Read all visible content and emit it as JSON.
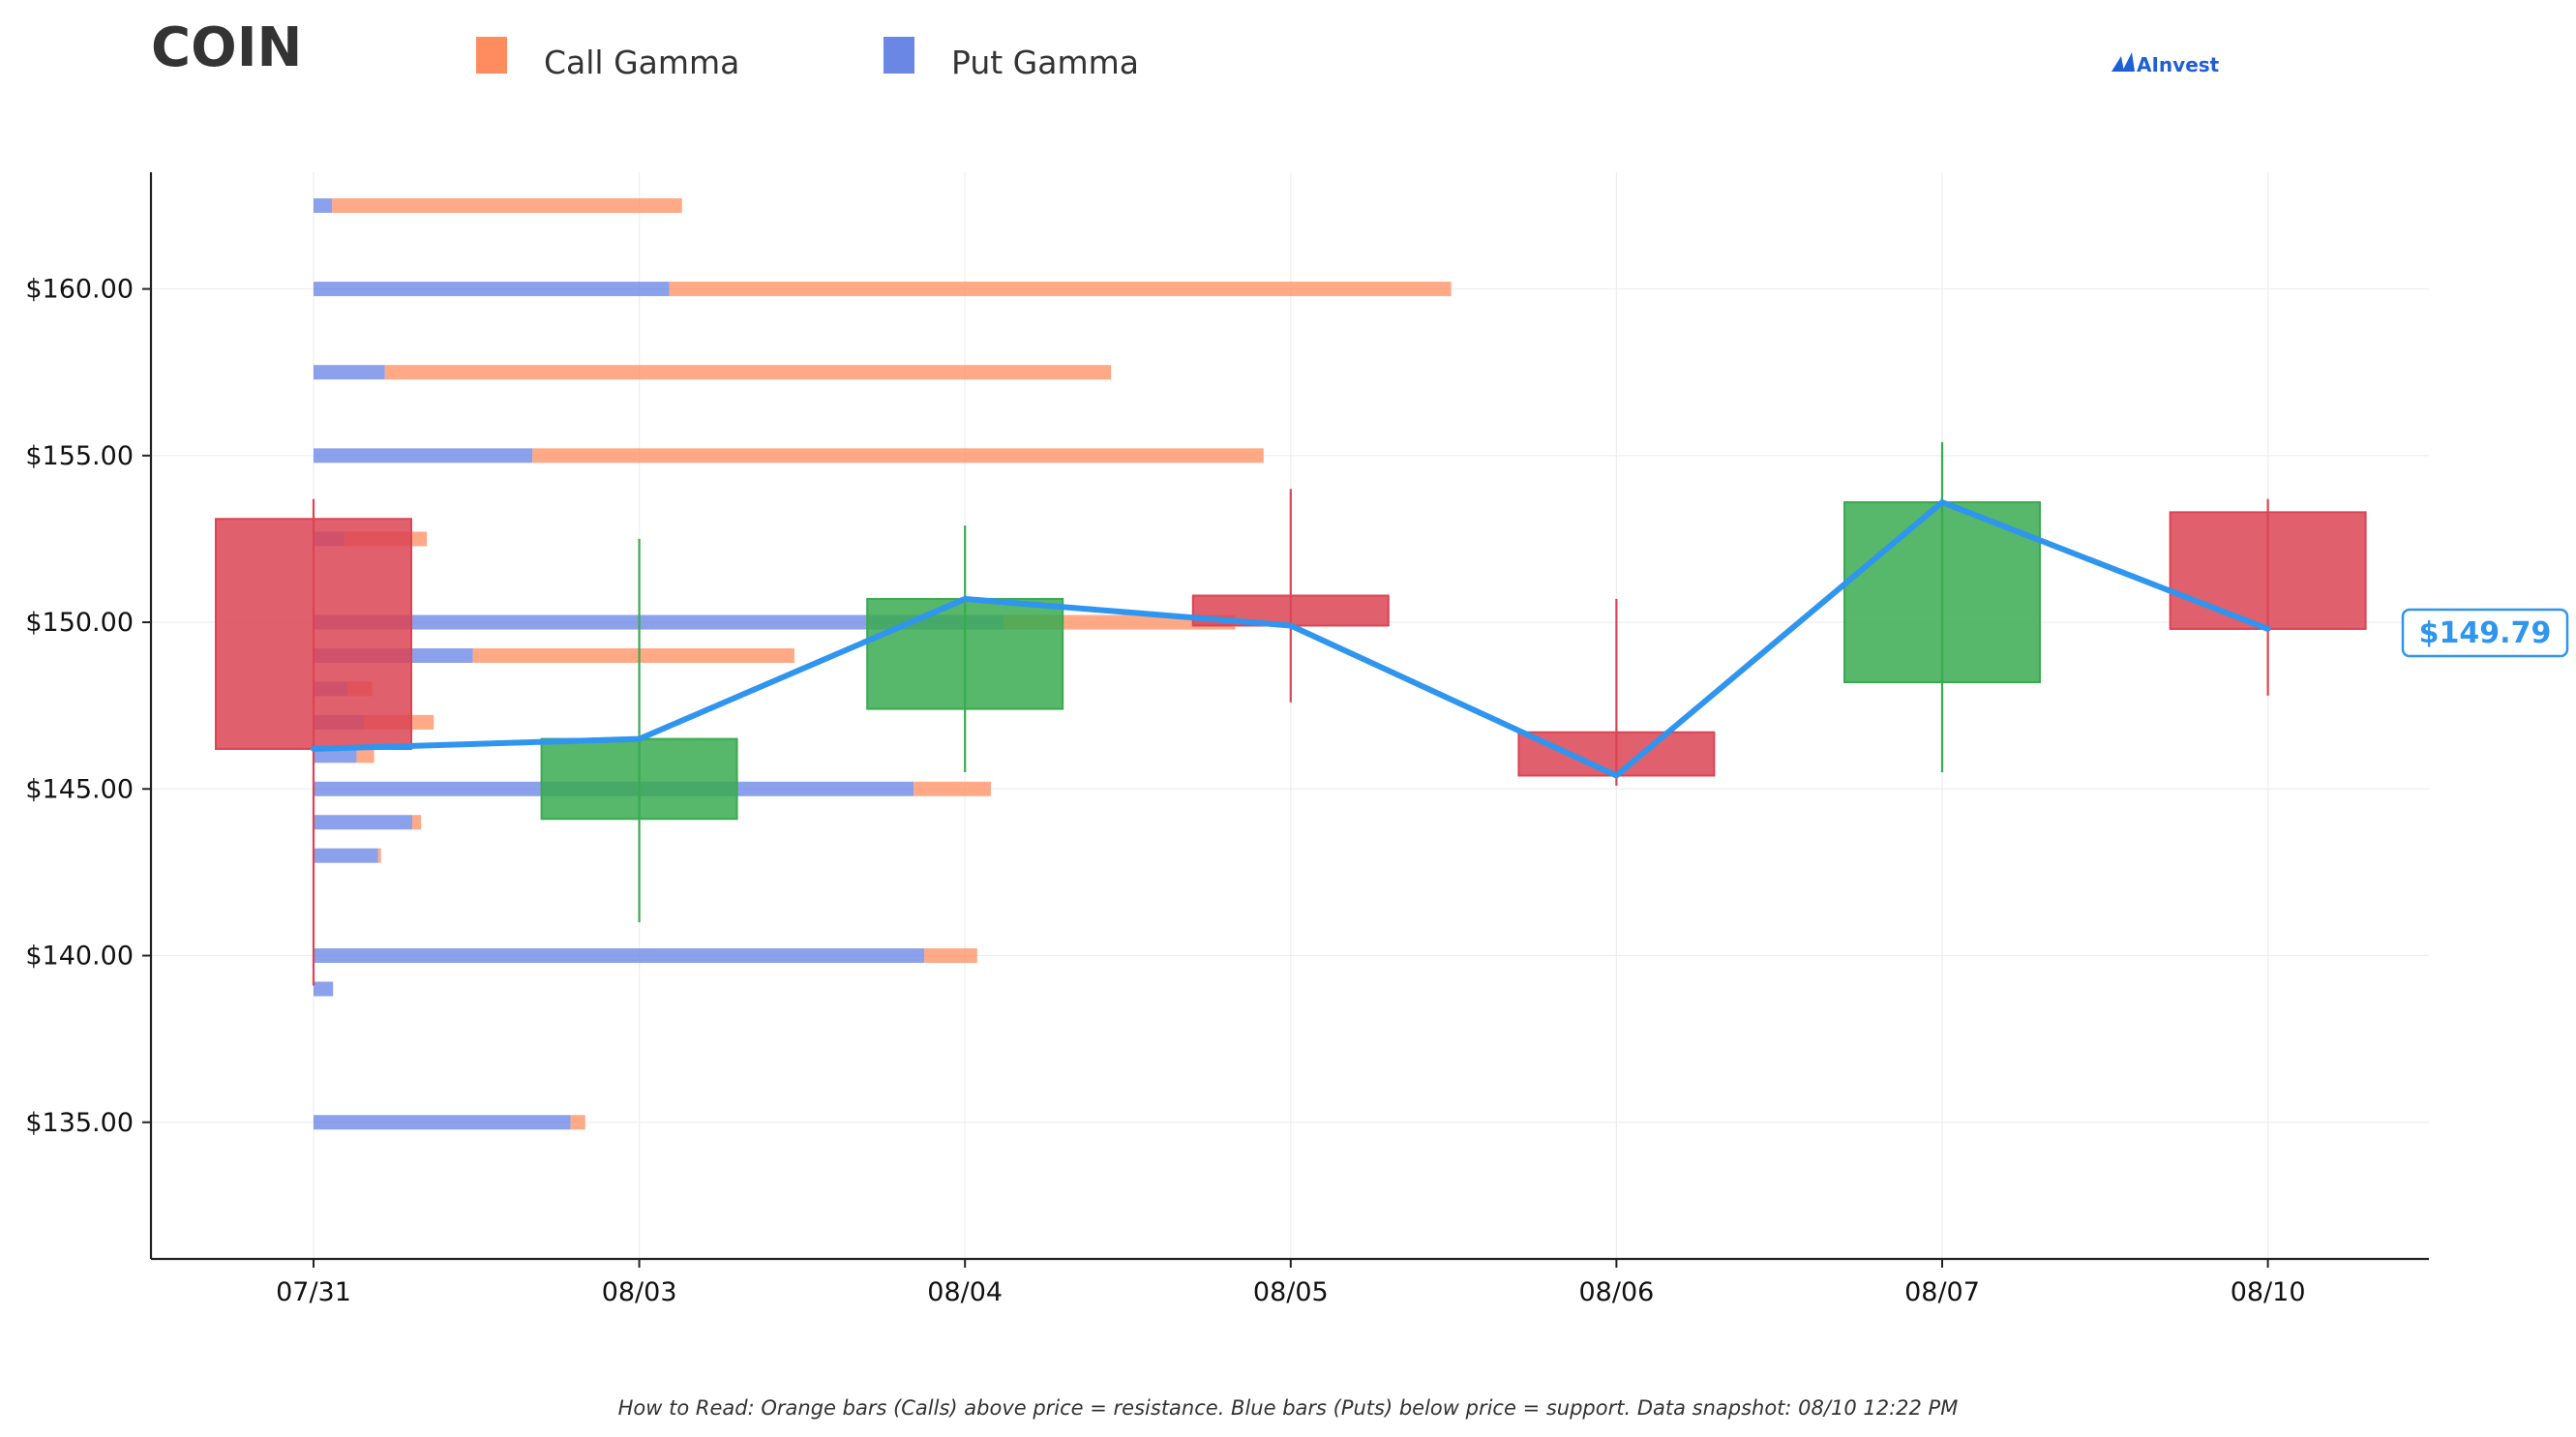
{
  "ticker": "COIN",
  "brand": "AInvest",
  "legend": [
    {
      "label": "Call Gamma",
      "color": "#ff8c5f"
    },
    {
      "label": "Put Gamma",
      "color": "#6b87e6"
    }
  ],
  "current_price_label": "$149.79",
  "footnote": "How to Read: Orange bars (Calls) above price = resistance. Blue bars (Puts) below price = support. Data snapshot: 08/10 12:22 PM",
  "colors": {
    "call": "#ff8c5f",
    "put": "#6b87e6",
    "up": "#3aaa50",
    "down": "#dc4454",
    "price_line": "#2f95ee"
  },
  "chart_data": {
    "type": "candlestick",
    "categories": [
      "07/31",
      "08/03",
      "08/04",
      "08/05",
      "08/06",
      "08/07",
      "08/10"
    ],
    "ylim": [
      130.9,
      163.5
    ],
    "yticks": [
      135,
      140,
      145,
      150,
      155,
      160
    ],
    "ytick_labels": [
      "$135.00",
      "$140.00",
      "$145.00",
      "$150.00",
      "$155.00",
      "$160.00"
    ],
    "grid": true,
    "candles": [
      {
        "date": "07/31",
        "open": 153.1,
        "close": 146.2,
        "high": 153.7,
        "low": 139.1
      },
      {
        "date": "08/03",
        "open": 144.1,
        "close": 146.5,
        "high": 152.5,
        "low": 141.0
      },
      {
        "date": "08/04",
        "open": 147.4,
        "close": 150.7,
        "high": 152.9,
        "low": 145.5
      },
      {
        "date": "08/05",
        "open": 150.8,
        "close": 149.9,
        "high": 154.0,
        "low": 147.6
      },
      {
        "date": "08/06",
        "open": 146.7,
        "close": 145.4,
        "high": 150.7,
        "low": 145.1
      },
      {
        "date": "08/07",
        "open": 148.2,
        "close": 153.6,
        "high": 155.4,
        "low": 145.5
      },
      {
        "date": "08/10",
        "open": 153.3,
        "close": 149.8,
        "high": 153.7,
        "low": 147.8
      }
    ],
    "price_line": [
      146.2,
      146.5,
      150.7,
      149.9,
      145.4,
      153.6,
      149.8
    ],
    "gamma_bars": [
      {
        "strike": 162.5,
        "put": 0.19,
        "call": 3.58
      },
      {
        "strike": 160.0,
        "put": 3.64,
        "call": 8.0
      },
      {
        "strike": 157.5,
        "put": 0.73,
        "call": 7.43
      },
      {
        "strike": 155.0,
        "put": 2.24,
        "call": 7.48
      },
      {
        "strike": 152.5,
        "put": 0.32,
        "call": 0.84
      },
      {
        "strike": 150.0,
        "put": 7.06,
        "call": 2.37
      },
      {
        "strike": 149.0,
        "put": 1.63,
        "call": 3.29
      },
      {
        "strike": 148.0,
        "put": 0.35,
        "call": 0.25
      },
      {
        "strike": 147.0,
        "put": 0.52,
        "call": 0.71
      },
      {
        "strike": 146.0,
        "put": 0.44,
        "call": 0.18
      },
      {
        "strike": 145.0,
        "put": 6.14,
        "call": 0.79
      },
      {
        "strike": 144.0,
        "put": 1.01,
        "call": 0.09
      },
      {
        "strike": 143.0,
        "put": 0.66,
        "call": 0.03
      },
      {
        "strike": 140.0,
        "put": 6.25,
        "call": 0.54
      },
      {
        "strike": 139.0,
        "put": 0.2,
        "call": 0.0
      },
      {
        "strike": 135.0,
        "put": 2.63,
        "call": 0.15
      }
    ]
  }
}
